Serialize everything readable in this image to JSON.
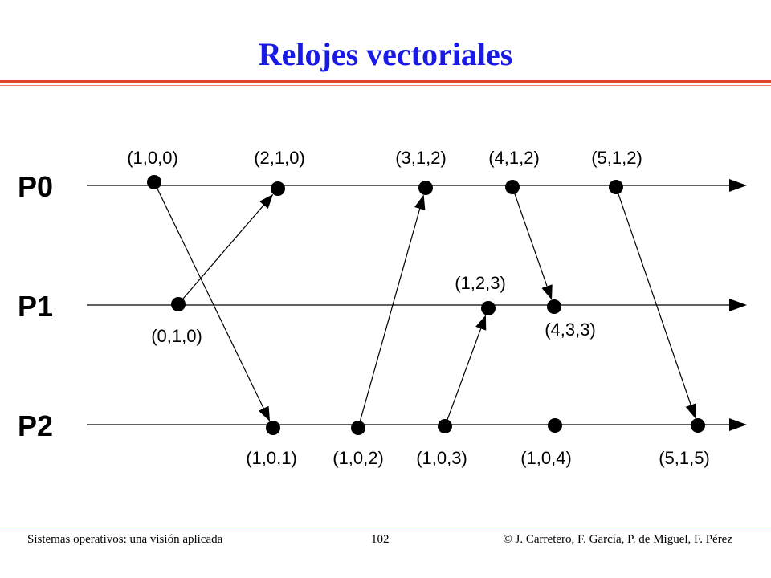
{
  "title": "Relojes vectoriales",
  "colors": {
    "title": "#1a1ae6",
    "accent_rule": "#e2462a",
    "ink": "#000000"
  },
  "processes": [
    {
      "id": "p0",
      "label": "P0"
    },
    {
      "id": "p1",
      "label": "P1"
    },
    {
      "id": "p2",
      "label": "P2"
    }
  ],
  "events": [
    {
      "id": "e00",
      "process": "p0",
      "label": "(1,0,0)"
    },
    {
      "id": "e01",
      "process": "p0",
      "label": "(2,1,0)"
    },
    {
      "id": "e02",
      "process": "p0",
      "label": "(3,1,2)"
    },
    {
      "id": "e03",
      "process": "p0",
      "label": "(4,1,2)"
    },
    {
      "id": "e04",
      "process": "p0",
      "label": "(5,1,2)"
    },
    {
      "id": "e10",
      "process": "p1",
      "label": "(0,1,0)"
    },
    {
      "id": "e11",
      "process": "p1",
      "label": "(1,2,3)"
    },
    {
      "id": "e12",
      "process": "p1",
      "label": "(4,3,3)"
    },
    {
      "id": "e20",
      "process": "p2",
      "label": "(1,0,1)"
    },
    {
      "id": "e21",
      "process": "p2",
      "label": "(1,0,2)"
    },
    {
      "id": "e22",
      "process": "p2",
      "label": "(1,0,3)"
    },
    {
      "id": "e23",
      "process": "p2",
      "label": "(1,0,4)"
    },
    {
      "id": "e24",
      "process": "p2",
      "label": "(5,1,5)"
    }
  ],
  "messages": [
    {
      "from": "e00",
      "to": "e20"
    },
    {
      "from": "e10",
      "to": "e01"
    },
    {
      "from": "e21",
      "to": "e02"
    },
    {
      "from": "e22",
      "to": "e11"
    },
    {
      "from": "e03",
      "to": "e12"
    },
    {
      "from": "e04",
      "to": "e24"
    }
  ],
  "footer": {
    "left": "Sistemas operativos: una visión aplicada",
    "page": "102",
    "right": "© J. Carretero, F. García, P. de Miguel, F. Pérez"
  }
}
